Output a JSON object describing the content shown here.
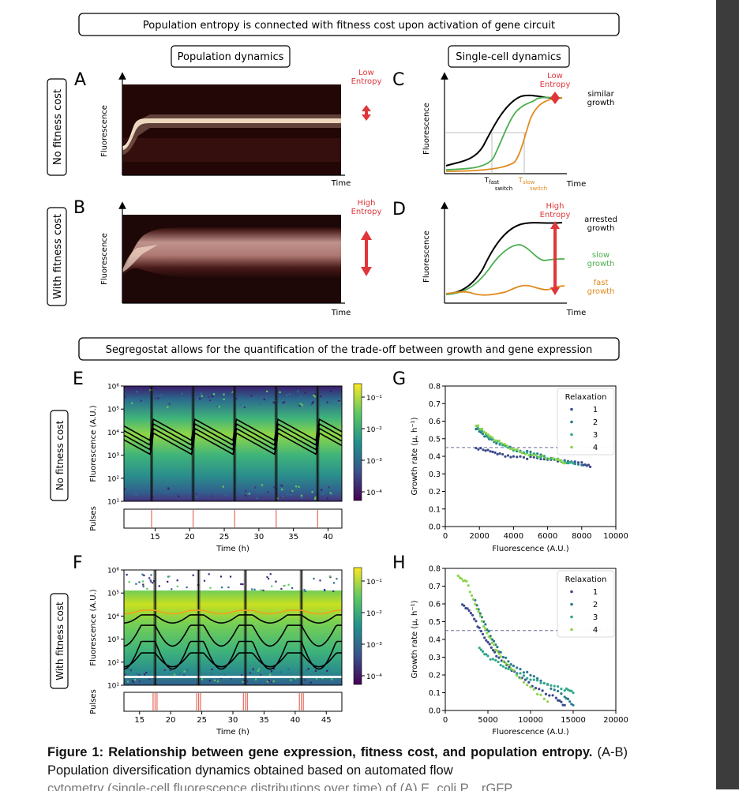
{
  "banner1": "Population entropy is connected with fitness cost upon activation of gene circuit",
  "banner2": "Segregostat allows for the quantification of the trade-off between growth and gene expression",
  "subheads": {
    "population": "Population dynamics",
    "single_cell": "Single-cell dynamics"
  },
  "rows": {
    "no_cost": "No fitness cost",
    "with_cost": "With fitness cost"
  },
  "panel_letters": {
    "A": "A",
    "B": "B",
    "C": "C",
    "D": "D",
    "E": "E",
    "F": "F",
    "G": "G",
    "H": "H"
  },
  "axis": {
    "fluorescence": "Fluorescence",
    "time": "Time",
    "fluo_au": "Fluorescence (A.U.)",
    "time_h": "Time (h)",
    "pulses": "Pulses",
    "growth_rate": "Growth rate (µ, h⁻¹)"
  },
  "entropy": {
    "low1": "Low",
    "low2": "Entropy",
    "high1": "High",
    "high2": "Entropy"
  },
  "panel_c": {
    "similar1": "similar",
    "similar2": "growth",
    "t_fast": "T",
    "t_fast_sub": "fast",
    "t_fast_sub2": "switch",
    "t_slow": "T",
    "t_slow_sub": "slow",
    "t_slow_sub2": "switch"
  },
  "panel_d": {
    "arrested1": "arrested",
    "arrested2": "growth",
    "slow1": "slow",
    "slow2": "growth",
    "fast1": "fast",
    "fast2": "growth"
  },
  "colorbar_ticks": [
    "10⁻¹",
    "10⁻²",
    "10⁻³",
    "10⁻⁴"
  ],
  "log_ticks": [
    "10⁶",
    "10⁵",
    "10⁴",
    "10³",
    "10²",
    "10¹"
  ],
  "legend": {
    "title": "Relaxation",
    "items": [
      "1",
      "2",
      "3",
      "4"
    ]
  },
  "colors": {
    "r1": "#3b4a8c",
    "r2": "#2a7a8c",
    "r3": "#2fa88a",
    "r4": "#8ad44a",
    "green": "#4caf50",
    "orange": "#e08a1e",
    "entropy_red": "#e0363a"
  },
  "chart_data": [
    {
      "type": "heatmap",
      "panel": "A",
      "xlabel": "Time",
      "ylabel": "Fluorescence"
    },
    {
      "type": "heatmap",
      "panel": "B",
      "xlabel": "Time",
      "ylabel": "Fluorescence"
    },
    {
      "type": "line",
      "panel": "C",
      "xlabel": "Time",
      "ylabel": "Fluorescence",
      "series": [
        {
          "color": "#000000",
          "values": [
            [
              0,
              0.08
            ],
            [
              0.25,
              0.15
            ],
            [
              0.4,
              0.55
            ],
            [
              0.55,
              0.85
            ],
            [
              0.7,
              0.92
            ],
            [
              1,
              0.9
            ]
          ]
        },
        {
          "color": "#4caf50",
          "values": [
            [
              0,
              0.05
            ],
            [
              0.4,
              0.1
            ],
            [
              0.55,
              0.6
            ],
            [
              0.7,
              0.88
            ],
            [
              1,
              0.9
            ]
          ]
        },
        {
          "color": "#e08a1e",
          "values": [
            [
              0,
              0.04
            ],
            [
              0.5,
              0.05
            ],
            [
              0.65,
              0.5
            ],
            [
              0.8,
              0.88
            ],
            [
              1,
              0.9
            ]
          ]
        }
      ]
    },
    {
      "type": "line",
      "panel": "D",
      "xlabel": "Time",
      "ylabel": "Fluorescence",
      "series": [
        {
          "name": "arrested growth",
          "color": "#000000",
          "values": [
            [
              0,
              0.08
            ],
            [
              0.3,
              0.2
            ],
            [
              0.5,
              0.75
            ],
            [
              0.65,
              0.9
            ],
            [
              1,
              0.88
            ]
          ]
        },
        {
          "name": "slow growth",
          "color": "#4caf50",
          "values": [
            [
              0,
              0.06
            ],
            [
              0.4,
              0.3
            ],
            [
              0.6,
              0.6
            ],
            [
              0.8,
              0.4
            ],
            [
              1,
              0.42
            ]
          ]
        },
        {
          "name": "fast growth",
          "color": "#e08a1e",
          "values": [
            [
              0,
              0.03
            ],
            [
              0.2,
              0.02
            ],
            [
              0.5,
              0.05
            ],
            [
              0.7,
              0.18
            ],
            [
              1,
              0.15
            ]
          ]
        }
      ]
    },
    {
      "type": "heatmap",
      "panel": "E",
      "xlabel": "Time (h)",
      "ylabel": "Fluorescence (A.U.)",
      "xticks": [
        15,
        20,
        25,
        30,
        35,
        40
      ],
      "xlim": [
        10.5,
        42
      ],
      "ylim_log10": [
        1,
        6
      ],
      "pulses_h": [
        14.5,
        20.5,
        26.5,
        32.5,
        38.5
      ]
    },
    {
      "type": "heatmap",
      "panel": "F",
      "xlabel": "Time (h)",
      "ylabel": "Fluorescence (A.U.)",
      "xticks": [
        15,
        20,
        25,
        30,
        35,
        40,
        45
      ],
      "xlim": [
        12.5,
        47.5
      ],
      "ylim_log10": [
        1,
        6
      ],
      "pulses_h": [
        17.5,
        24.5,
        32,
        41
      ]
    },
    {
      "type": "scatter",
      "panel": "G",
      "xlabel": "Fluorescence (A.U.)",
      "ylabel": "Growth rate (µ, h⁻¹)",
      "xlim": [
        0,
        10000
      ],
      "ylim": [
        0,
        0.8
      ],
      "xticks": [
        0,
        2000,
        4000,
        6000,
        8000,
        10000
      ],
      "yticks": [
        0.0,
        0.1,
        0.2,
        0.3,
        0.4,
        0.5,
        0.6,
        0.7,
        0.8
      ],
      "hline": 0.45,
      "series": [
        {
          "name": "1",
          "color": "#3b4a8c",
          "values": [
            [
              1800,
              0.45
            ],
            [
              2500,
              0.43
            ],
            [
              3200,
              0.41
            ],
            [
              4000,
              0.4
            ],
            [
              5000,
              0.39
            ],
            [
              6000,
              0.38
            ],
            [
              7000,
              0.37
            ],
            [
              8000,
              0.36
            ],
            [
              8500,
              0.34
            ]
          ]
        },
        {
          "name": "2",
          "color": "#2a7a8c",
          "values": [
            [
              1800,
              0.56
            ],
            [
              2300,
              0.52
            ],
            [
              3000,
              0.48
            ],
            [
              4000,
              0.44
            ],
            [
              5000,
              0.42
            ],
            [
              6000,
              0.39
            ],
            [
              7000,
              0.37
            ],
            [
              8000,
              0.35
            ]
          ]
        },
        {
          "name": "3",
          "color": "#2fa88a",
          "values": [
            [
              1900,
              0.57
            ],
            [
              2500,
              0.51
            ],
            [
              3200,
              0.47
            ],
            [
              4000,
              0.44
            ],
            [
              5000,
              0.41
            ],
            [
              6000,
              0.39
            ],
            [
              7000,
              0.37
            ],
            [
              7500,
              0.36
            ]
          ]
        },
        {
          "name": "4",
          "color": "#8ad44a",
          "values": [
            [
              1800,
              0.58
            ],
            [
              2400,
              0.53
            ],
            [
              3000,
              0.49
            ],
            [
              3800,
              0.45
            ],
            [
              4500,
              0.42
            ],
            [
              5500,
              0.4
            ],
            [
              6500,
              0.38
            ],
            [
              7000,
              0.36
            ]
          ]
        }
      ]
    },
    {
      "type": "scatter",
      "panel": "H",
      "xlabel": "Fluorescence (A.U.)",
      "ylabel": "Growth rate (µ, h⁻¹)",
      "xlim": [
        0,
        20000
      ],
      "ylim": [
        0,
        0.8
      ],
      "xticks": [
        0,
        5000,
        10000,
        15000,
        20000
      ],
      "yticks": [
        0.0,
        0.1,
        0.2,
        0.3,
        0.4,
        0.5,
        0.6,
        0.7,
        0.8
      ],
      "hline": 0.45,
      "series": [
        {
          "name": "1",
          "color": "#3b4a8c",
          "values": [
            [
              2000,
              0.6
            ],
            [
              3000,
              0.55
            ],
            [
              4000,
              0.46
            ],
            [
              5000,
              0.38
            ],
            [
              6000,
              0.31
            ],
            [
              7500,
              0.24
            ],
            [
              9000,
              0.18
            ],
            [
              11000,
              0.12
            ],
            [
              13000,
              0.07
            ],
            [
              14000,
              0.03
            ]
          ]
        },
        {
          "name": "2",
          "color": "#2a7a8c",
          "values": [
            [
              3500,
              0.62
            ],
            [
              4500,
              0.5
            ],
            [
              5500,
              0.4
            ],
            [
              6500,
              0.32
            ],
            [
              8000,
              0.25
            ],
            [
              10000,
              0.2
            ],
            [
              12000,
              0.14
            ],
            [
              14000,
              0.08
            ],
            [
              15000,
              0.03
            ]
          ]
        },
        {
          "name": "3",
          "color": "#2fa88a",
          "values": [
            [
              4000,
              0.35
            ],
            [
              5000,
              0.3
            ],
            [
              6500,
              0.26
            ],
            [
              8000,
              0.22
            ],
            [
              10000,
              0.18
            ],
            [
              12000,
              0.15
            ],
            [
              14000,
              0.12
            ],
            [
              15000,
              0.1
            ]
          ]
        },
        {
          "name": "4",
          "color": "#8ad44a",
          "values": [
            [
              1500,
              0.76
            ],
            [
              2500,
              0.72
            ],
            [
              3500,
              0.6
            ],
            [
              4500,
              0.48
            ],
            [
              5500,
              0.38
            ],
            [
              6500,
              0.3
            ],
            [
              8000,
              0.22
            ],
            [
              10000,
              0.13
            ],
            [
              12000,
              0.05
            ]
          ]
        }
      ]
    }
  ],
  "caption": {
    "bold": "Figure 1: Relationship between gene expression, fitness cost, and population entropy.",
    "text": " (A-B) Population diversification dynamics obtained based on automated flow",
    "cut": "cytometry (single-cell fluorescence distributions over time) of (A) E. coli P... rGFP"
  }
}
